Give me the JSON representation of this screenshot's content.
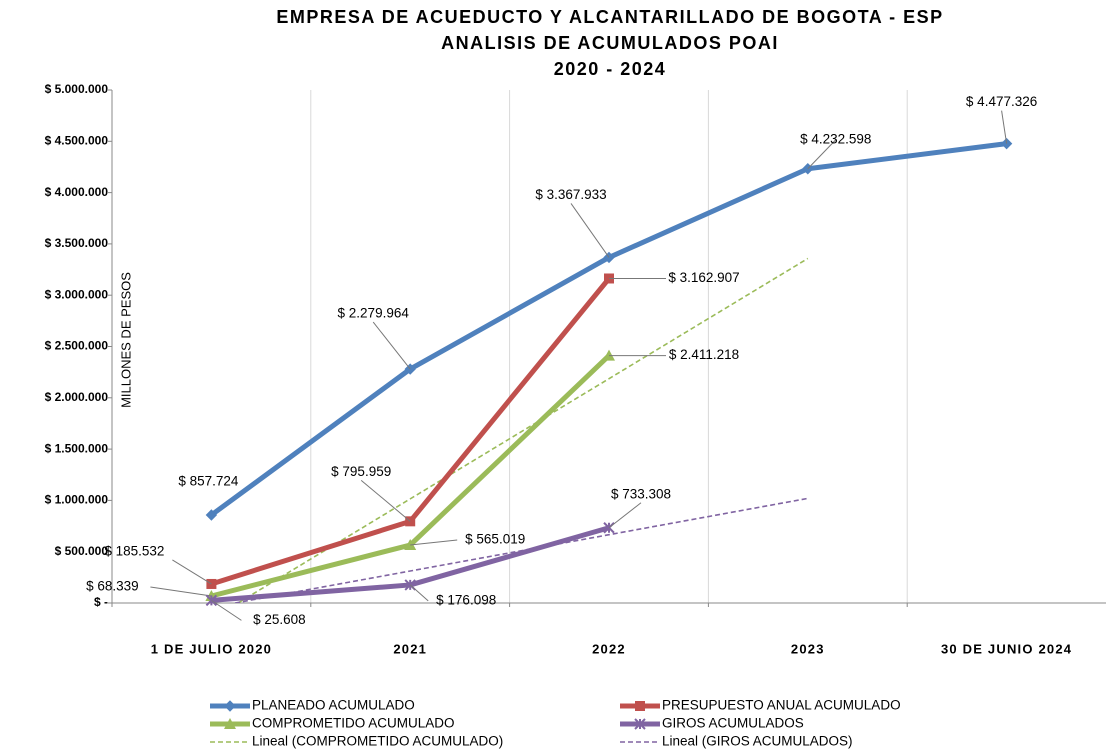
{
  "chart_data": {
    "type": "line",
    "title": [
      "EMPRESA DE ACUEDUCTO Y ALCANTARILLADO DE BOGOTA - ESP",
      "ANALISIS DE ACUMULADOS POAI",
      "2020 - 2024"
    ],
    "y_label": "MILLONES DE PESOS",
    "categories": [
      "1 DE JULIO 2020",
      "2021",
      "2022",
      "2023",
      "30 DE JUNIO 2024"
    ],
    "series": [
      {
        "name": "PLANEADO ACUMULADO",
        "color": "#4f81bd",
        "marker": "diamond",
        "style": "solid",
        "values": [
          857724,
          2279964,
          3367933,
          4232598,
          4477326
        ],
        "value_labels": [
          "$ 857.724",
          "$ 2.279.964",
          "$ 3.367.933",
          "$ 4.232.598",
          "$ 4.477.326"
        ]
      },
      {
        "name": "PRESUPUESTO ANUAL ACUMULADO",
        "color": "#c0504d",
        "marker": "square",
        "style": "solid",
        "values": [
          185532,
          795959,
          3162907,
          null,
          null
        ],
        "value_labels": [
          "$ 185.532",
          "$ 795.959",
          "$ 3.162.907",
          null,
          null
        ]
      },
      {
        "name": "COMPROMETIDO ACUMULADO",
        "color": "#9bbb59",
        "marker": "triangle",
        "style": "solid",
        "values": [
          68339,
          565019,
          2411218,
          null,
          null
        ],
        "value_labels": [
          "$ 68.339",
          "$ 565.019",
          "$ 2.411.218",
          null,
          null
        ]
      },
      {
        "name": "GIROS ACUMULADOS",
        "color": "#8064a2",
        "marker": "star",
        "style": "solid",
        "values": [
          25608,
          176098,
          733308,
          null,
          null
        ],
        "value_labels": [
          "$ 25.608",
          "$ 176.098",
          "$ 733.308",
          null,
          null
        ]
      },
      {
        "name": "Lineal (COMPROMETIDO ACUMULADO)",
        "color": "#9bbb59",
        "marker": "none",
        "style": "dashed",
        "values": [
          -156581,
          1014859,
          2186299,
          3357739,
          null
        ]
      },
      {
        "name": "Lineal (GIROS ACUMULADOS)",
        "color": "#8064a2",
        "marker": "none",
        "style": "dashed",
        "values": [
          -42179,
          311671,
          665521,
          1019371,
          null
        ]
      }
    ],
    "ylim": [
      0,
      5000000
    ],
    "yticks": [
      {
        "value": 0,
        "label": "$ -"
      },
      {
        "value": 500000,
        "label": "$ 500.000"
      },
      {
        "value": 1000000,
        "label": "$ 1.000.000"
      },
      {
        "value": 1500000,
        "label": "$ 1.500.000"
      },
      {
        "value": 2000000,
        "label": "$ 2.000.000"
      },
      {
        "value": 2500000,
        "label": "$ 2.500.000"
      },
      {
        "value": 3000000,
        "label": "$ 3.000.000"
      },
      {
        "value": 3500000,
        "label": "$ 3.500.000"
      },
      {
        "value": 4000000,
        "label": "$ 4.000.000"
      },
      {
        "value": 4500000,
        "label": "$ 4.500.000"
      },
      {
        "value": 5000000,
        "label": "$ 5.000.000"
      }
    ],
    "grid": true,
    "legend": "bottom"
  }
}
